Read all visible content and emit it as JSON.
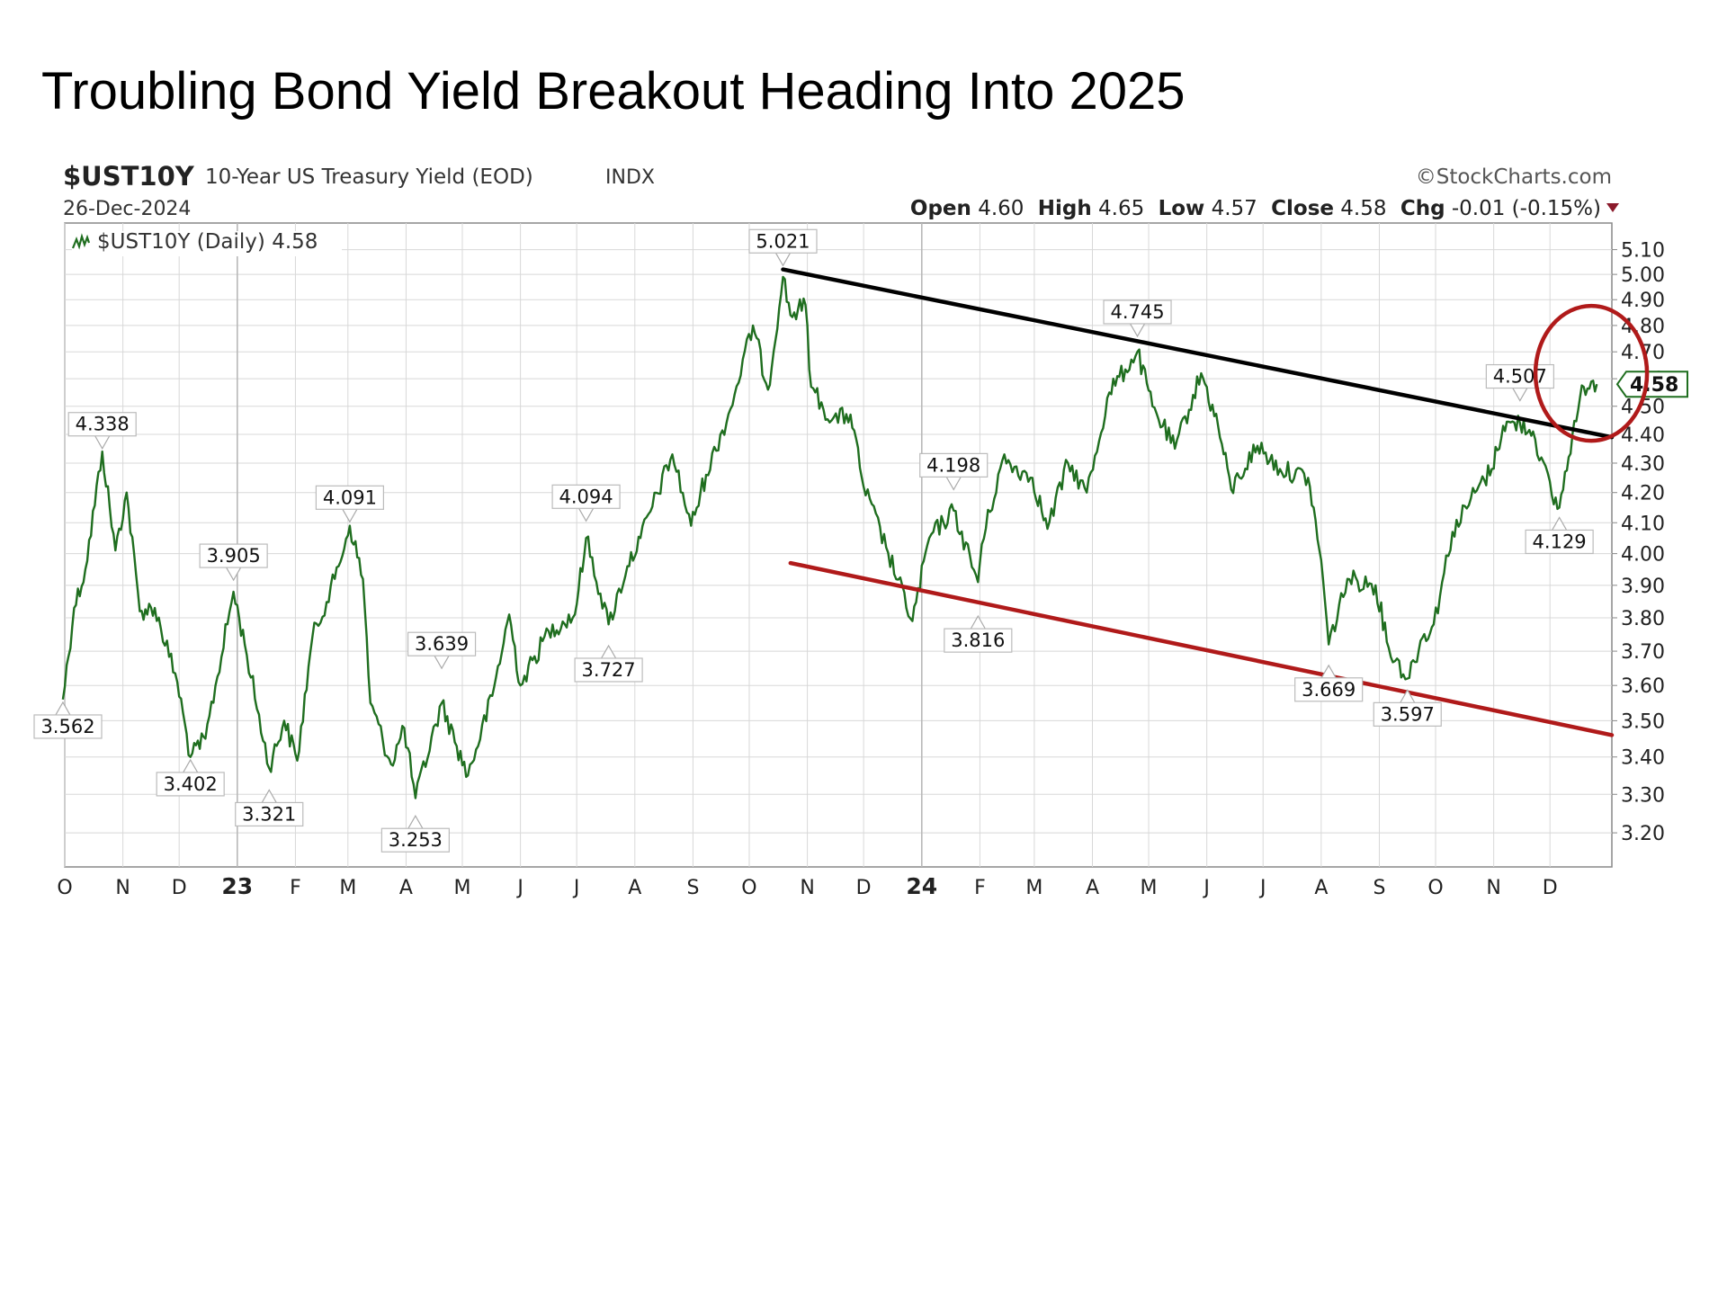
{
  "slide": {
    "title": "Troubling Bond Yield Breakout Heading Into 2025"
  },
  "header": {
    "symbol": "$UST10Y",
    "description": "10-Year US Treasury Yield (EOD)",
    "exchange": "INDX",
    "date": "26-Dec-2024",
    "brand": "©StockCharts.com",
    "open_label": "Open",
    "open_value": "4.60",
    "high_label": "High",
    "high_value": "4.65",
    "low_label": "Low",
    "low_value": "4.57",
    "close_label": "Close",
    "close_value": "4.58",
    "chg_label": "Chg",
    "chg_value": "-0.01 (-0.15%)"
  },
  "legend": {
    "text": "$UST10Y (Daily) 4.58"
  },
  "current_value_label": "4.58",
  "colors": {
    "price_line": "#1f6e1f",
    "upper_trendline": "#000000",
    "lower_trendline": "#b01a1a",
    "highlight_circle": "#b01a1a",
    "grid": "#d8d8d8",
    "change_arrow": "#8b1a2b"
  },
  "chart_data": {
    "type": "line",
    "title": "$UST10Y 10-Year US Treasury Yield (EOD)",
    "series_name": "$UST10Y (Daily)",
    "y_ticks": [
      "5.10",
      "5.00",
      "4.90",
      "4.80",
      "4.70",
      "4.60",
      "4.50",
      "4.40",
      "4.30",
      "4.20",
      "4.10",
      "4.00",
      "3.90",
      "3.80",
      "3.70",
      "3.60",
      "3.50",
      "3.40",
      "3.30",
      "3.20"
    ],
    "y_scale": "log",
    "ylim": [
      3.15,
      5.15
    ],
    "x_ticks": [
      {
        "label": "O",
        "date": "2022-10-01",
        "bold": false
      },
      {
        "label": "N",
        "date": "2022-11-01",
        "bold": false
      },
      {
        "label": "D",
        "date": "2022-12-01",
        "bold": false
      },
      {
        "label": "23",
        "date": "2023-01-01",
        "bold": true
      },
      {
        "label": "F",
        "date": "2023-02-01",
        "bold": false
      },
      {
        "label": "M",
        "date": "2023-03-01",
        "bold": false
      },
      {
        "label": "A",
        "date": "2023-04-01",
        "bold": false
      },
      {
        "label": "M",
        "date": "2023-05-01",
        "bold": false
      },
      {
        "label": "J",
        "date": "2023-06-01",
        "bold": false
      },
      {
        "label": "J",
        "date": "2023-07-01",
        "bold": false
      },
      {
        "label": "A",
        "date": "2023-08-01",
        "bold": false
      },
      {
        "label": "S",
        "date": "2023-09-01",
        "bold": false
      },
      {
        "label": "O",
        "date": "2023-10-01",
        "bold": false
      },
      {
        "label": "N",
        "date": "2023-11-01",
        "bold": false
      },
      {
        "label": "D",
        "date": "2023-12-01",
        "bold": false
      },
      {
        "label": "24",
        "date": "2024-01-01",
        "bold": true
      },
      {
        "label": "F",
        "date": "2024-02-01",
        "bold": false
      },
      {
        "label": "M",
        "date": "2024-03-01",
        "bold": false
      },
      {
        "label": "A",
        "date": "2024-04-01",
        "bold": false
      },
      {
        "label": "M",
        "date": "2024-05-01",
        "bold": false
      },
      {
        "label": "J",
        "date": "2024-06-01",
        "bold": false
      },
      {
        "label": "J",
        "date": "2024-07-01",
        "bold": false
      },
      {
        "label": "A",
        "date": "2024-08-01",
        "bold": false
      },
      {
        "label": "S",
        "date": "2024-09-01",
        "bold": false
      },
      {
        "label": "O",
        "date": "2024-10-01",
        "bold": false
      },
      {
        "label": "N",
        "date": "2024-11-01",
        "bold": false
      },
      {
        "label": "D",
        "date": "2024-12-01",
        "bold": false
      }
    ],
    "x_end": "2025-01-03",
    "series": [
      {
        "date": "2022-09-30",
        "y": 3.56
      },
      {
        "date": "2022-10-06",
        "y": 3.83
      },
      {
        "date": "2022-10-12",
        "y": 3.95
      },
      {
        "date": "2022-10-21",
        "y": 4.34
      },
      {
        "date": "2022-10-28",
        "y": 4.01
      },
      {
        "date": "2022-11-03",
        "y": 4.2
      },
      {
        "date": "2022-11-10",
        "y": 3.82
      },
      {
        "date": "2022-11-18",
        "y": 3.83
      },
      {
        "date": "2022-11-30",
        "y": 3.61
      },
      {
        "date": "2022-12-07",
        "y": 3.4
      },
      {
        "date": "2022-12-15",
        "y": 3.45
      },
      {
        "date": "2022-12-30",
        "y": 3.88
      },
      {
        "date": "2023-01-05",
        "y": 3.72
      },
      {
        "date": "2023-01-18",
        "y": 3.37
      },
      {
        "date": "2023-01-26",
        "y": 3.5
      },
      {
        "date": "2023-02-02",
        "y": 3.39
      },
      {
        "date": "2023-02-10",
        "y": 3.74
      },
      {
        "date": "2023-02-22",
        "y": 3.92
      },
      {
        "date": "2023-03-02",
        "y": 4.09
      },
      {
        "date": "2023-03-09",
        "y": 3.92
      },
      {
        "date": "2023-03-13",
        "y": 3.55
      },
      {
        "date": "2023-03-24",
        "y": 3.38
      },
      {
        "date": "2023-03-31",
        "y": 3.48
      },
      {
        "date": "2023-04-06",
        "y": 3.29
      },
      {
        "date": "2023-04-20",
        "y": 3.55
      },
      {
        "date": "2023-04-28",
        "y": 3.43
      },
      {
        "date": "2023-05-04",
        "y": 3.35
      },
      {
        "date": "2023-05-17",
        "y": 3.57
      },
      {
        "date": "2023-05-26",
        "y": 3.81
      },
      {
        "date": "2023-06-01",
        "y": 3.6
      },
      {
        "date": "2023-06-16",
        "y": 3.76
      },
      {
        "date": "2023-06-30",
        "y": 3.81
      },
      {
        "date": "2023-07-06",
        "y": 4.05
      },
      {
        "date": "2023-07-18",
        "y": 3.78
      },
      {
        "date": "2023-07-28",
        "y": 3.96
      },
      {
        "date": "2023-08-04",
        "y": 4.05
      },
      {
        "date": "2023-08-21",
        "y": 4.33
      },
      {
        "date": "2023-08-31",
        "y": 4.09
      },
      {
        "date": "2023-09-08",
        "y": 4.26
      },
      {
        "date": "2023-09-21",
        "y": 4.49
      },
      {
        "date": "2023-10-03",
        "y": 4.8
      },
      {
        "date": "2023-10-11",
        "y": 4.56
      },
      {
        "date": "2023-10-19",
        "y": 4.99
      },
      {
        "date": "2023-10-23",
        "y": 4.84
      },
      {
        "date": "2023-10-31",
        "y": 4.88
      },
      {
        "date": "2023-11-03",
        "y": 4.57
      },
      {
        "date": "2023-11-14",
        "y": 4.45
      },
      {
        "date": "2023-11-24",
        "y": 4.47
      },
      {
        "date": "2023-12-01",
        "y": 4.22
      },
      {
        "date": "2023-12-13",
        "y": 4.02
      },
      {
        "date": "2023-12-27",
        "y": 3.79
      },
      {
        "date": "2024-01-05",
        "y": 4.05
      },
      {
        "date": "2024-01-18",
        "y": 4.14
      },
      {
        "date": "2024-01-31",
        "y": 3.91
      },
      {
        "date": "2024-02-02",
        "y": 4.03
      },
      {
        "date": "2024-02-13",
        "y": 4.31
      },
      {
        "date": "2024-02-29",
        "y": 4.25
      },
      {
        "date": "2024-03-08",
        "y": 4.08
      },
      {
        "date": "2024-03-19",
        "y": 4.3
      },
      {
        "date": "2024-03-29",
        "y": 4.2
      },
      {
        "date": "2024-04-10",
        "y": 4.55
      },
      {
        "date": "2024-04-25",
        "y": 4.7
      },
      {
        "date": "2024-05-03",
        "y": 4.5
      },
      {
        "date": "2024-05-15",
        "y": 4.35
      },
      {
        "date": "2024-05-29",
        "y": 4.62
      },
      {
        "date": "2024-06-07",
        "y": 4.43
      },
      {
        "date": "2024-06-14",
        "y": 4.21
      },
      {
        "date": "2024-06-28",
        "y": 4.36
      },
      {
        "date": "2024-07-10",
        "y": 4.28
      },
      {
        "date": "2024-07-25",
        "y": 4.25
      },
      {
        "date": "2024-08-01",
        "y": 3.98
      },
      {
        "date": "2024-08-05",
        "y": 3.72
      },
      {
        "date": "2024-08-15",
        "y": 3.92
      },
      {
        "date": "2024-08-30",
        "y": 3.9
      },
      {
        "date": "2024-09-06",
        "y": 3.71
      },
      {
        "date": "2024-09-16",
        "y": 3.62
      },
      {
        "date": "2024-09-24",
        "y": 3.74
      },
      {
        "date": "2024-09-30",
        "y": 3.78
      },
      {
        "date": "2024-10-10",
        "y": 4.07
      },
      {
        "date": "2024-10-22",
        "y": 4.2
      },
      {
        "date": "2024-10-31",
        "y": 4.28
      },
      {
        "date": "2024-11-06",
        "y": 4.43
      },
      {
        "date": "2024-11-15",
        "y": 4.44
      },
      {
        "date": "2024-11-22",
        "y": 4.41
      },
      {
        "date": "2024-12-02",
        "y": 4.19
      },
      {
        "date": "2024-12-06",
        "y": 4.15
      },
      {
        "date": "2024-12-13",
        "y": 4.4
      },
      {
        "date": "2024-12-19",
        "y": 4.57
      },
      {
        "date": "2024-12-23",
        "y": 4.59
      },
      {
        "date": "2024-12-26",
        "y": 4.58
      }
    ],
    "annotations": [
      {
        "text": "3.562",
        "date": "2022-09-30",
        "y": 3.562,
        "pos": "below"
      },
      {
        "text": "4.338",
        "date": "2022-10-21",
        "y": 4.338,
        "pos": "above"
      },
      {
        "text": "3.402",
        "date": "2022-12-07",
        "y": 3.402,
        "pos": "below"
      },
      {
        "text": "3.905",
        "date": "2022-12-30",
        "y": 3.905,
        "pos": "above"
      },
      {
        "text": "3.321",
        "date": "2023-01-18",
        "y": 3.321,
        "pos": "below"
      },
      {
        "text": "4.091",
        "date": "2023-03-02",
        "y": 4.091,
        "pos": "above"
      },
      {
        "text": "3.253",
        "date": "2023-04-06",
        "y": 3.253,
        "pos": "below"
      },
      {
        "text": "3.639",
        "date": "2023-04-20",
        "y": 3.639,
        "pos": "above"
      },
      {
        "text": "4.094",
        "date": "2023-07-06",
        "y": 4.094,
        "pos": "above"
      },
      {
        "text": "3.727",
        "date": "2023-07-18",
        "y": 3.727,
        "pos": "below"
      },
      {
        "text": "5.021",
        "date": "2023-10-19",
        "y": 5.021,
        "pos": "above"
      },
      {
        "text": "4.198",
        "date": "2024-01-18",
        "y": 4.198,
        "pos": "above"
      },
      {
        "text": "3.816",
        "date": "2024-01-31",
        "y": 3.816,
        "pos": "below"
      },
      {
        "text": "4.745",
        "date": "2024-04-25",
        "y": 4.745,
        "pos": "above"
      },
      {
        "text": "3.669",
        "date": "2024-08-05",
        "y": 3.669,
        "pos": "below"
      },
      {
        "text": "3.597",
        "date": "2024-09-16",
        "y": 3.597,
        "pos": "below"
      },
      {
        "text": "4.507",
        "date": "2024-11-15",
        "y": 4.507,
        "pos": "above"
      },
      {
        "text": "4.129",
        "date": "2024-12-06",
        "y": 4.129,
        "pos": "below"
      }
    ],
    "trendlines": [
      {
        "name": "upper",
        "start": {
          "date": "2023-10-19",
          "y": 5.02
        },
        "end": {
          "date": "2025-01-03",
          "y": 4.39
        }
      },
      {
        "name": "lower",
        "start": {
          "date": "2023-10-23",
          "y": 3.97
        },
        "end": {
          "date": "2025-01-03",
          "y": 3.46
        }
      }
    ],
    "highlight": {
      "center": {
        "date": "2024-12-23",
        "y": 4.62
      }
    }
  }
}
